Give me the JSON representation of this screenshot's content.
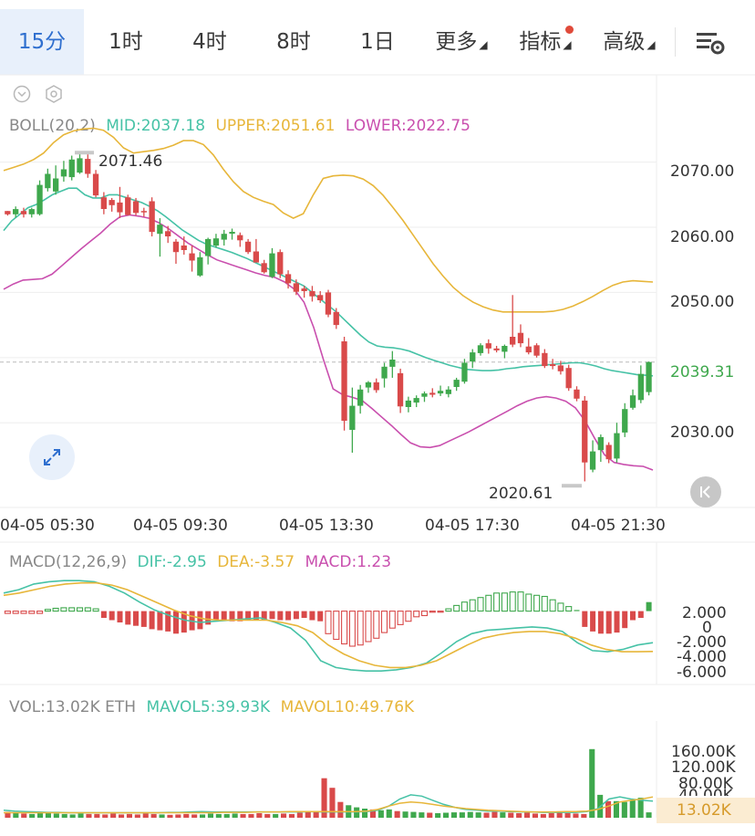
{
  "tabs": [
    {
      "label": "15分",
      "active": true
    },
    {
      "label": "1时"
    },
    {
      "label": "4时"
    },
    {
      "label": "8时"
    },
    {
      "label": "1日"
    },
    {
      "label": "更多",
      "arrow": "◢"
    },
    {
      "label": "指标",
      "arrow": "◢"
    },
    {
      "label": "高级",
      "arrow": "◢"
    }
  ],
  "toolbar": {
    "settings_icon": "chart-settings-icon"
  },
  "boll": {
    "name": "BOLL(20,2)",
    "mid": "MID:2037.18",
    "upper": "UPPER:2051.61",
    "lower": "LOWER:2022.75"
  },
  "macd": {
    "name": "MACD(12,26,9)",
    "dif": "DIF:-2.95",
    "dea": "DEA:-3.57",
    "macd": "MACD:1.23"
  },
  "vol": {
    "name": "VOL:13.02K ETH",
    "mavol5": "MAVOL5:39.93K",
    "mavol10": "MAVOL10:49.76K"
  },
  "price_axis": [
    "2070.00",
    "2060.00",
    "2050.00",
    "2039.31",
    "2030.00"
  ],
  "time_axis": [
    "04-05 05:30",
    "04-05 09:30",
    "04-05 13:30",
    "04-05 17:30",
    "04-05 21:30"
  ],
  "macd_axis": [
    "2.000",
    "0",
    "-2.000",
    "-4.000",
    "-6.000"
  ],
  "vol_axis": [
    "160.00K",
    "120.00K",
    "80.00K",
    "40.00K",
    "13.02K"
  ],
  "annotations": {
    "high": "2071.46",
    "low": "2020.61"
  },
  "colors": {
    "up": "#3fa84d",
    "down": "#d94a4a",
    "mid": "#46c2a6",
    "upper": "#e7b63a",
    "lower": "#c94fae",
    "accent": "#2f6fcf"
  },
  "chart_data": [
    {
      "type": "candlestick",
      "title": "BOLL(20,2)",
      "grid": true,
      "ylim": [
        2017,
        2082
      ],
      "last_price": 2039.31,
      "candles": [
        [
          2062.5,
          2062.5,
          2061.8,
          2062.0
        ],
        [
          2062.0,
          2063.2,
          2061.5,
          2062.8
        ],
        [
          2062.5,
          2063.0,
          2061.5,
          2062.0
        ],
        [
          2062.0,
          2063.0,
          2061.5,
          2062.8
        ],
        [
          2062.0,
          2067.2,
          2061.8,
          2066.5
        ],
        [
          2066.0,
          2069.0,
          2065.5,
          2068.2
        ],
        [
          2065.5,
          2069.5,
          2065.0,
          2067.5
        ],
        [
          2067.8,
          2070.2,
          2067.0,
          2068.9
        ],
        [
          2067.7,
          2071.0,
          2067.2,
          2070.4
        ],
        [
          2068.4,
          2071.46,
          2068.2,
          2070.6
        ],
        [
          2070.5,
          2071.2,
          2067.6,
          2068.2
        ],
        [
          2068.2,
          2068.8,
          2064.6,
          2064.9
        ],
        [
          2064.6,
          2065.4,
          2062.0,
          2062.8
        ],
        [
          2064.2,
          2064.5,
          2062.4,
          2063.4
        ],
        [
          2063.8,
          2066.2,
          2061.4,
          2062.3
        ],
        [
          2064.6,
          2065.0,
          2061.8,
          2061.9
        ],
        [
          2064.0,
          2064.5,
          2061.8,
          2062.2
        ],
        [
          2062.5,
          2063.0,
          2061.6,
          2062.3
        ],
        [
          2064.0,
          2064.6,
          2058.6,
          2059.3
        ],
        [
          2059.0,
          2061.4,
          2055.5,
          2060.4
        ],
        [
          2059.4,
          2060.2,
          2057.6,
          2058.6
        ],
        [
          2057.8,
          2058.2,
          2054.4,
          2056.2
        ],
        [
          2057.2,
          2058.6,
          2055.8,
          2056.5
        ],
        [
          2056.0,
          2057.2,
          2053.2,
          2054.9
        ],
        [
          2052.6,
          2056.2,
          2052.4,
          2055.4
        ],
        [
          2055.6,
          2058.4,
          2054.3,
          2058.2
        ],
        [
          2057.2,
          2059.0,
          2056.9,
          2058.3
        ],
        [
          2058.1,
          2059.6,
          2057.2,
          2059.0
        ],
        [
          2059.0,
          2059.8,
          2058.1,
          2059.3
        ],
        [
          2058.8,
          2059.2,
          2057.0,
          2058.0
        ],
        [
          2057.8,
          2058.2,
          2055.9,
          2056.2
        ],
        [
          2056.3,
          2058.2,
          2054.6,
          2054.6
        ],
        [
          2054.5,
          2055.0,
          2052.9,
          2053.1
        ],
        [
          2052.4,
          2056.8,
          2052.2,
          2056.0
        ],
        [
          2056.2,
          2056.6,
          2052.2,
          2052.8
        ],
        [
          2052.8,
          2053.4,
          2050.6,
          2051.4
        ],
        [
          2051.4,
          2052.0,
          2049.6,
          2050.1
        ],
        [
          2050.6,
          2051.0,
          2049.2,
          2050.2
        ],
        [
          2050.2,
          2051.0,
          2048.6,
          2049.4
        ],
        [
          2049.6,
          2050.2,
          2048.4,
          2048.8
        ],
        [
          2050.0,
          2050.4,
          2046.2,
          2046.6
        ],
        [
          2047.0,
          2047.6,
          2044.4,
          2045.0
        ],
        [
          2042.5,
          2043.2,
          2028.8,
          2030.3
        ],
        [
          2028.9,
          2035.4,
          2025.4,
          2032.6
        ],
        [
          2032.6,
          2035.8,
          2031.4,
          2035.1
        ],
        [
          2035.4,
          2036.4,
          2034.6,
          2036.2
        ],
        [
          2036.2,
          2036.8,
          2034.6,
          2035.0
        ],
        [
          2036.8,
          2039.2,
          2035.4,
          2038.6
        ],
        [
          2038.6,
          2041.0,
          2036.9,
          2039.7
        ],
        [
          2037.6,
          2038.3,
          2031.5,
          2032.5
        ],
        [
          2032.4,
          2034.0,
          2031.6,
          2033.4
        ],
        [
          2033.1,
          2034.2,
          2032.4,
          2033.8
        ],
        [
          2034.0,
          2034.8,
          2033.2,
          2034.5
        ],
        [
          2034.6,
          2035.3,
          2033.9,
          2034.3
        ],
        [
          2034.5,
          2035.7,
          2034.1,
          2034.9
        ],
        [
          2034.4,
          2035.6,
          2033.9,
          2035.1
        ],
        [
          2035.5,
          2036.9,
          2034.9,
          2036.6
        ],
        [
          2036.3,
          2039.8,
          2036.0,
          2039.2
        ],
        [
          2039.4,
          2041.3,
          2038.4,
          2040.8
        ],
        [
          2040.7,
          2042.2,
          2040.3,
          2041.9
        ],
        [
          2042.2,
          2042.8,
          2040.6,
          2041.4
        ],
        [
          2041.4,
          2041.8,
          2040.8,
          2041.1
        ],
        [
          2040.9,
          2042.0,
          2039.9,
          2041.8
        ],
        [
          2043.2,
          2049.6,
          2041.6,
          2042.0
        ],
        [
          2043.8,
          2045.1,
          2041.6,
          2042.2
        ],
        [
          2041.7,
          2043.0,
          2040.5,
          2040.8
        ],
        [
          2041.9,
          2042.2,
          2040.0,
          2040.3
        ],
        [
          2040.7,
          2041.3,
          2038.4,
          2038.7
        ],
        [
          2039.0,
          2039.8,
          2038.2,
          2038.7
        ],
        [
          2038.8,
          2039.5,
          2037.4,
          2037.9
        ],
        [
          2038.4,
          2038.9,
          2034.9,
          2035.3
        ],
        [
          2035.1,
          2035.6,
          2033.3,
          2033.7
        ],
        [
          2033.4,
          2034.1,
          2021.0,
          2023.9
        ],
        [
          2022.8,
          2027.3,
          2022.4,
          2025.6
        ],
        [
          2025.8,
          2028.2,
          2024.0,
          2027.8
        ],
        [
          2026.6,
          2027.0,
          2023.8,
          2024.4
        ],
        [
          2024.5,
          2030.0,
          2023.9,
          2028.4
        ],
        [
          2028.5,
          2033.0,
          2027.8,
          2032.1
        ],
        [
          2032.3,
          2035.1,
          2032.0,
          2034.2
        ],
        [
          2033.5,
          2038.8,
          2033.0,
          2037.5
        ],
        [
          2034.7,
          2039.4,
          2034.2,
          2039.31
        ]
      ],
      "series": [
        {
          "name": "MID",
          "values": [
            2059.5,
            2061,
            2062,
            2063,
            2063.5,
            2064.2,
            2065,
            2065.5,
            2066,
            2066,
            2065,
            2064.5,
            2064.5,
            2065,
            2065,
            2064.6,
            2064.2,
            2063.8,
            2063.2,
            2062.5,
            2061.6,
            2060.6,
            2059.6,
            2058.8,
            2058,
            2057.4,
            2057,
            2056.6,
            2056.2,
            2055.7,
            2055.2,
            2054.6,
            2054,
            2053.4,
            2052.8,
            2052.2,
            2051.6,
            2051,
            2050,
            2049,
            2048,
            2047,
            2045.8,
            2044.6,
            2043.4,
            2042.4,
            2041.8,
            2041.6,
            2041.5,
            2041.3,
            2041,
            2040.5,
            2040,
            2039.6,
            2039.2,
            2038.8,
            2038.5,
            2038.2,
            2038.1,
            2038,
            2038,
            2038.1,
            2038.3,
            2038.4,
            2038.6,
            2038.7,
            2038.8,
            2038.9,
            2039,
            2039.1,
            2039.2,
            2039.2,
            2039,
            2038.7,
            2038.3,
            2038,
            2037.8,
            2037.6,
            2037.4,
            2037.3,
            2037.2
          ]
        },
        {
          "name": "UPPER",
          "values": [
            2068.7,
            2069.2,
            2069.7,
            2070.4,
            2071.4,
            2073,
            2074.2,
            2074.8,
            2075.1,
            2075.2,
            2074.9,
            2073.8,
            2072.2,
            2071.4,
            2071.6,
            2071.8,
            2072.1,
            2072.6,
            2073.3,
            2073.3,
            2072.7,
            2071.1,
            2068.9,
            2067,
            2065.5,
            2064.6,
            2064,
            2063.5,
            2062.2,
            2061.4,
            2062.1,
            2065,
            2067.5,
            2067.9,
            2068,
            2067.9,
            2067.4,
            2066.4,
            2064.9,
            2063,
            2061,
            2058.8,
            2056.6,
            2054.4,
            2052.5,
            2050.8,
            2049.5,
            2048.5,
            2047.8,
            2047.3,
            2047,
            2047,
            2047,
            2047,
            2047,
            2047.1,
            2047.4,
            2047.9,
            2048.6,
            2049.4,
            2050.3,
            2051.1,
            2051.6,
            2051.8,
            2051.7,
            2051.6
          ]
        },
        {
          "name": "LOWER",
          "values": [
            2050.5,
            2051.3,
            2051.9,
            2052,
            2052.1,
            2052.8,
            2054.1,
            2055.4,
            2056.7,
            2057.9,
            2059.1,
            2060.5,
            2061.6,
            2061.9,
            2061.7,
            2061.4,
            2060.7,
            2059.8,
            2058.7,
            2057.6,
            2056.7,
            2055.8,
            2055,
            2054.5,
            2054,
            2053.5,
            2053,
            2052.6,
            2052.3,
            2051.6,
            2050.5,
            2048.5,
            2044.6,
            2039.7,
            2035.2,
            2034.3,
            2033.9,
            2033.4,
            2032.2,
            2030.9,
            2029.6,
            2028.2,
            2026.9,
            2026.3,
            2026.2,
            2026.5,
            2027.2,
            2027.9,
            2028.6,
            2029.4,
            2030.2,
            2031,
            2031.8,
            2032.6,
            2033.3,
            2033.8,
            2034,
            2033.8,
            2033.3,
            2032.3,
            2030.3,
            2027.6,
            2025.1,
            2023.9,
            2023.6,
            2023.4,
            2023.3,
            2022.75
          ]
        }
      ]
    },
    {
      "type": "bar",
      "title": "MACD(12,26,9)",
      "ylim": [
        -6.5,
        3.2
      ],
      "histogram": [
        -0.2,
        -0.2,
        -0.2,
        -0.2,
        -0.2,
        0.15,
        0.25,
        0.3,
        0.3,
        0.3,
        0.3,
        0.2,
        -0.6,
        -0.8,
        -1,
        -1.2,
        -1.3,
        -1.4,
        -1.6,
        -1.7,
        -1.8,
        -2.0,
        -1.9,
        -1.7,
        -1.6,
        -1.2,
        -0.8,
        -0.8,
        -0.9,
        -0.9,
        -0.8,
        -0.8,
        -0.8,
        -0.7,
        -0.8,
        -0.8,
        -0.7,
        -0.6,
        -0.8,
        -0.9,
        -2.0,
        -2.5,
        -2.9,
        -3.1,
        -3.0,
        -2.7,
        -2.4,
        -1.9,
        -1.5,
        -1.2,
        -0.9,
        -0.5,
        -0.4,
        -0.1,
        -0.1,
        0.2,
        0.5,
        0.8,
        1.0,
        1.2,
        1.4,
        1.6,
        1.6,
        1.7,
        1.7,
        1.5,
        1.4,
        1.3,
        1.0,
        0.7,
        0.4,
        0.1,
        -1.4,
        -1.8,
        -2.0,
        -2.0,
        -1.9,
        -1.5,
        -0.8,
        -0.6,
        0.8
      ],
      "series": [
        {
          "name": "DIF",
          "values": [
            1.6,
            1.9,
            2.4,
            2.6,
            2.7,
            2.7,
            2.6,
            2.2,
            1.6,
            0.8,
            0.1,
            -0.4,
            -0.8,
            -1.0,
            -0.9,
            -0.8,
            -0.7,
            -0.6,
            -1.0,
            -1.5,
            -2.6,
            -4.4,
            -5.0,
            -5.2,
            -5.3,
            -5.3,
            -5.2,
            -5.0,
            -4.6,
            -3.7,
            -2.7,
            -2.0,
            -1.7,
            -1.6,
            -1.5,
            -1.4,
            -1.5,
            -1.8,
            -2.8,
            -3.5,
            -3.6,
            -3.4,
            -3.0,
            -2.8
          ]
        },
        {
          "name": "DEA",
          "values": [
            1.4,
            1.6,
            1.9,
            2.2,
            2.4,
            2.5,
            2.5,
            2.3,
            1.9,
            1.3,
            0.7,
            0.1,
            -0.4,
            -0.7,
            -0.8,
            -0.8,
            -0.8,
            -0.8,
            -1.0,
            -1.3,
            -1.9,
            -3.0,
            -3.8,
            -4.4,
            -4.8,
            -5.0,
            -5.0,
            -4.8,
            -4.4,
            -3.7,
            -3.0,
            -2.4,
            -2.1,
            -1.9,
            -1.8,
            -1.8,
            -2.0,
            -2.4,
            -3.0,
            -3.4,
            -3.6,
            -3.6,
            -3.57
          ]
        }
      ]
    },
    {
      "type": "bar",
      "title": "VOL",
      "ylim": [
        0,
        180
      ],
      "volumes": [
        14,
        12,
        10,
        9,
        11,
        13,
        10,
        9,
        8,
        10,
        9,
        9,
        8,
        10,
        8,
        9,
        8,
        10,
        9,
        8,
        7,
        8,
        9,
        8,
        8,
        10,
        9,
        9,
        10,
        9,
        9,
        11,
        9,
        9,
        10,
        9,
        12,
        15,
        16,
        95,
        72,
        38,
        30,
        25,
        22,
        20,
        18,
        20,
        16,
        15,
        14,
        13,
        12,
        11,
        12,
        13,
        13,
        14,
        13,
        12,
        14,
        13,
        12,
        11,
        12,
        10,
        9,
        11,
        12,
        11,
        10,
        9,
        165,
        55,
        40,
        40,
        38,
        42,
        48,
        13.02
      ],
      "series": [
        {
          "name": "MAVOL5",
          "values": [
            18,
            16,
            15,
            14,
            13,
            13,
            12,
            12,
            12,
            12,
            12,
            12,
            12,
            12,
            12,
            13,
            13,
            14,
            15,
            14,
            14,
            14,
            14,
            14,
            14,
            14,
            14,
            14,
            15,
            14,
            14,
            14,
            14,
            15,
            18,
            28,
            45,
            55,
            52,
            42,
            32,
            25,
            20,
            18,
            16,
            16,
            15,
            14,
            14,
            13,
            13,
            13,
            13,
            15,
            22,
            45,
            50,
            45,
            42,
            40
          ]
        },
        {
          "name": "MAVOL10",
          "values": [
            12,
            12,
            12,
            12,
            12,
            12,
            12,
            12,
            12,
            12,
            12,
            12,
            12,
            12,
            12,
            12,
            12,
            12,
            12,
            12,
            13,
            13,
            13,
            14,
            14,
            14,
            15,
            15,
            15,
            15,
            15,
            15,
            15,
            16,
            20,
            28,
            35,
            38,
            36,
            32,
            28,
            25,
            22,
            20,
            18,
            17,
            16,
            15,
            14,
            14,
            14,
            15,
            15,
            16,
            20,
            28,
            38,
            42,
            45,
            50
          ]
        }
      ]
    }
  ]
}
